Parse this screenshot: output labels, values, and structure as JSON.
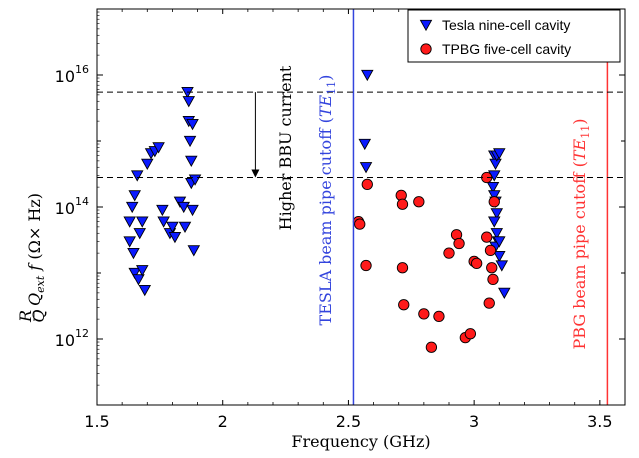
{
  "chart_data": {
    "type": "scatter",
    "xlabel": "Frequency (GHz)",
    "ylabel_parts": [
      "R",
      "Q",
      "Q",
      "ext",
      "f",
      "(Ω× Hz)"
    ],
    "x_ticks": [
      "1.5",
      "2",
      "2.5",
      "3",
      "3.5"
    ],
    "x_tick_values": [
      1.5,
      2,
      2.5,
      3,
      3.5
    ],
    "y_ticks": [
      {
        "base": "10",
        "exp": "12",
        "value": 1000000000000.0
      },
      {
        "base": "10",
        "exp": "14",
        "value": 100000000000000.0
      },
      {
        "base": "10",
        "exp": "16",
        "value": 1e+16
      }
    ],
    "xlim": [
      1.5,
      3.6
    ],
    "ylim": [
      100000000000.0,
      1e+17
    ],
    "yscale": "log",
    "grid": false,
    "legend_position": "top-right",
    "colors": {
      "tesla": "#0a1aff",
      "tpbg": "#ff1a1a",
      "tesla_line": "#3344dd",
      "pbg_line": "#ff3333"
    },
    "series": [
      {
        "name": "Tesla nine-cell cavity",
        "marker": "triangle-down",
        "color": "#0a1aff",
        "points": [
          [
            1.63,
            60000000000000.0
          ],
          [
            1.63,
            30000000000000.0
          ],
          [
            1.64,
            100000000000000.0
          ],
          [
            1.645,
            20000000000000.0
          ],
          [
            1.65,
            150000000000000.0
          ],
          [
            1.65,
            10000000000000.0
          ],
          [
            1.66,
            300000000000000.0
          ],
          [
            1.665,
            8000000000000.0
          ],
          [
            1.67,
            40000000000000.0
          ],
          [
            1.68,
            60000000000000.0
          ],
          [
            1.68,
            11000000000000.0
          ],
          [
            1.69,
            5500000000000.0
          ],
          [
            1.7,
            450000000000000.0
          ],
          [
            1.715,
            650000000000000.0
          ],
          [
            1.73,
            700000000000000.0
          ],
          [
            1.745,
            800000000000000.0
          ],
          [
            1.76,
            90000000000000.0
          ],
          [
            1.765,
            60000000000000.0
          ],
          [
            1.79,
            40000000000000.0
          ],
          [
            1.8,
            50000000000000.0
          ],
          [
            1.81,
            35000000000000.0
          ],
          [
            1.83,
            120000000000000.0
          ],
          [
            1.845,
            100000000000000.0
          ],
          [
            1.85,
            50000000000000.0
          ],
          [
            1.86,
            5500000000000000.0
          ],
          [
            1.865,
            2000000000000000.0
          ],
          [
            1.865,
            4000000000000000.0
          ],
          [
            1.87,
            1000000000000000.0
          ],
          [
            1.875,
            500000000000000.0
          ],
          [
            1.875,
            230000000000000.0
          ],
          [
            1.88,
            1800000000000000.0
          ],
          [
            1.88,
            90000000000000.0
          ],
          [
            1.885,
            22000000000000.0
          ],
          [
            1.89,
            260000000000000.0
          ],
          [
            2.575,
            1e+16
          ],
          [
            2.565,
            900000000000000.0
          ],
          [
            2.57,
            400000000000000.0
          ],
          [
            3.08,
            600000000000000.0
          ],
          [
            3.085,
            450000000000000.0
          ],
          [
            3.08,
            300000000000000.0
          ],
          [
            3.075,
            200000000000000.0
          ],
          [
            3.08,
            150000000000000.0
          ],
          [
            3.085,
            120000000000000.0
          ],
          [
            3.09,
            80000000000000.0
          ],
          [
            3.08,
            60000000000000.0
          ],
          [
            3.09,
            40000000000000.0
          ],
          [
            3.095,
            30000000000000.0
          ],
          [
            3.085,
            25000000000000.0
          ],
          [
            3.1,
            30000000000000.0
          ],
          [
            3.1,
            18000000000000.0
          ],
          [
            3.11,
            13000000000000.0
          ],
          [
            3.12,
            5000000000000.0
          ],
          [
            3.09,
            600000000000000.0
          ],
          [
            3.1,
            650000000000000.0
          ]
        ]
      },
      {
        "name": "TPBG five-cell cavity",
        "marker": "circle",
        "color": "#ff1a1a",
        "points": [
          [
            2.54,
            60000000000000.0
          ],
          [
            2.545,
            55000000000000.0
          ],
          [
            2.57,
            13000000000000.0
          ],
          [
            2.575,
            220000000000000.0
          ],
          [
            2.71,
            150000000000000.0
          ],
          [
            2.715,
            110000000000000.0
          ],
          [
            2.715,
            12000000000000.0
          ],
          [
            2.72,
            3300000000000.0
          ],
          [
            2.78,
            120000000000000.0
          ],
          [
            2.8,
            2400000000000.0
          ],
          [
            2.83,
            750000000000.0
          ],
          [
            2.86,
            2200000000000.0
          ],
          [
            2.9,
            20000000000000.0
          ],
          [
            2.93,
            38000000000000.0
          ],
          [
            2.94,
            28000000000000.0
          ],
          [
            2.965,
            1050000000000.0
          ],
          [
            2.985,
            1200000000000.0
          ],
          [
            3.0,
            15000000000000.0
          ],
          [
            3.01,
            14000000000000.0
          ],
          [
            3.05,
            35000000000000.0
          ],
          [
            3.05,
            280000000000000.0
          ],
          [
            3.06,
            3500000000000.0
          ],
          [
            3.065,
            22000000000000.0
          ],
          [
            3.07,
            12000000000000.0
          ],
          [
            3.075,
            8000000000000.0
          ],
          [
            3.08,
            120000000000000.0
          ]
        ]
      }
    ],
    "vlines": [
      {
        "x": 2.52,
        "label_prefix": "TESLA beam pipe cutoff (",
        "label_math": "TE",
        "label_sub": "11",
        "label_suffix": ")",
        "color": "#3344dd"
      },
      {
        "x": 3.53,
        "label_prefix": "PBG beam pipe cutoff (",
        "label_math": "TE",
        "label_sub": "11",
        "label_suffix": ")",
        "color": "#ff3333"
      }
    ],
    "hlines": [
      {
        "y": 5500000000000000.0,
        "style": "dashed"
      },
      {
        "y": 280000000000000.0,
        "style": "dashed"
      }
    ],
    "arrow": {
      "x": 2.13,
      "from_y": 5500000000000000.0,
      "to_y": 280000000000000.0
    },
    "annotation": "Higher BBU current"
  }
}
